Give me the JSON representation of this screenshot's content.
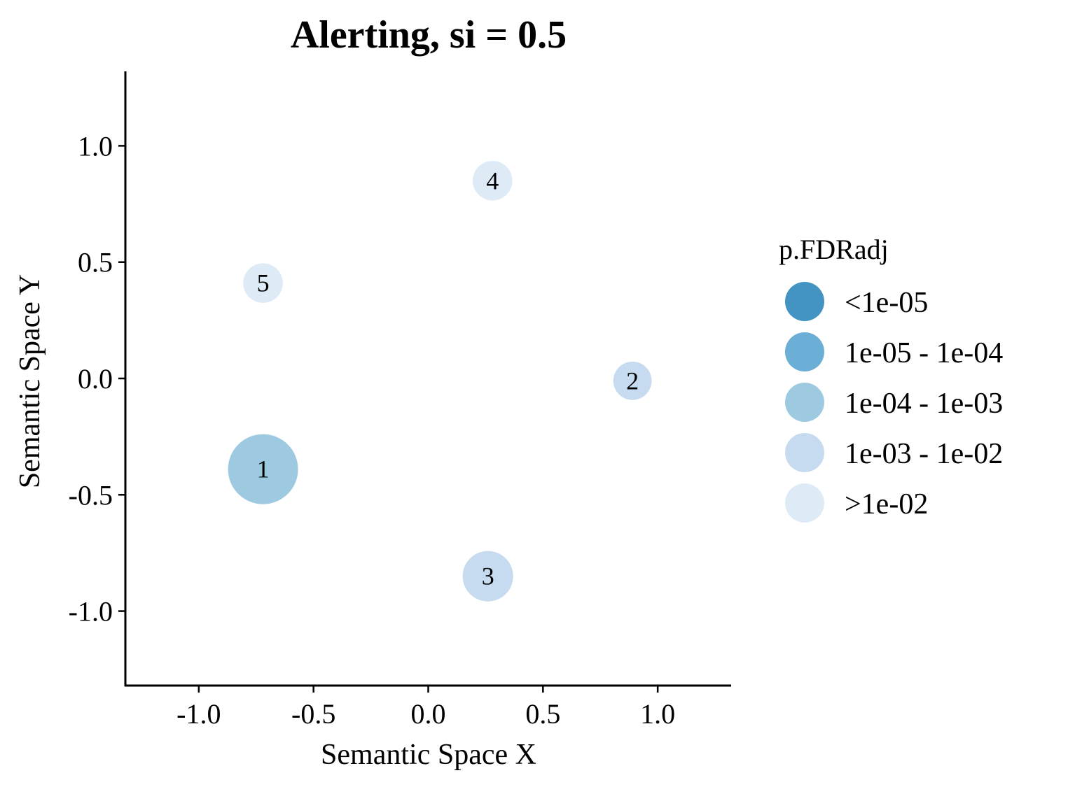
{
  "chart_data": {
    "type": "scatter",
    "title": "Alerting, si = 0.5",
    "xlabel": "Semantic Space X",
    "ylabel": "Semantic Space Y",
    "xlim": [
      -1.32,
      1.32
    ],
    "ylim": [
      -1.32,
      1.32
    ],
    "x_ticks": [
      -1.0,
      -0.5,
      0.0,
      0.5,
      1.0
    ],
    "x_tick_labels": [
      "-1.0",
      "-0.5",
      "0.0",
      "0.5",
      "1.0"
    ],
    "y_ticks": [
      -1.0,
      -0.5,
      0.0,
      0.5,
      1.0
    ],
    "y_tick_labels": [
      "-1.0",
      "-0.5",
      "0.0",
      "0.5",
      "1.0"
    ],
    "grid": false,
    "legend": {
      "title": "p.FDRadj",
      "placement": "right",
      "entries": [
        {
          "label": "<1e-05",
          "color": "#4393c3"
        },
        {
          "label": "1e-05 - 1e-04",
          "color": "#6baed6"
        },
        {
          "label": "1e-04 - 1e-03",
          "color": "#9ecae1"
        },
        {
          "label": "1e-03 - 1e-02",
          "color": "#c6dbef"
        },
        {
          "label": ">1e-02",
          "color": "#deebf7"
        }
      ]
    },
    "points": [
      {
        "label": "1",
        "x": -0.72,
        "y": -0.39,
        "size": 1.0,
        "color": "#9ecae1"
      },
      {
        "label": "2",
        "x": 0.89,
        "y": -0.01,
        "size": 0.3,
        "color": "#c6dbef"
      },
      {
        "label": "3",
        "x": 0.26,
        "y": -0.85,
        "size": 0.52,
        "color": "#c6dbef"
      },
      {
        "label": "4",
        "x": 0.28,
        "y": 0.85,
        "size": 0.32,
        "color": "#deebf7"
      },
      {
        "label": "5",
        "x": -0.72,
        "y": 0.41,
        "size": 0.32,
        "color": "#deebf7"
      }
    ]
  }
}
